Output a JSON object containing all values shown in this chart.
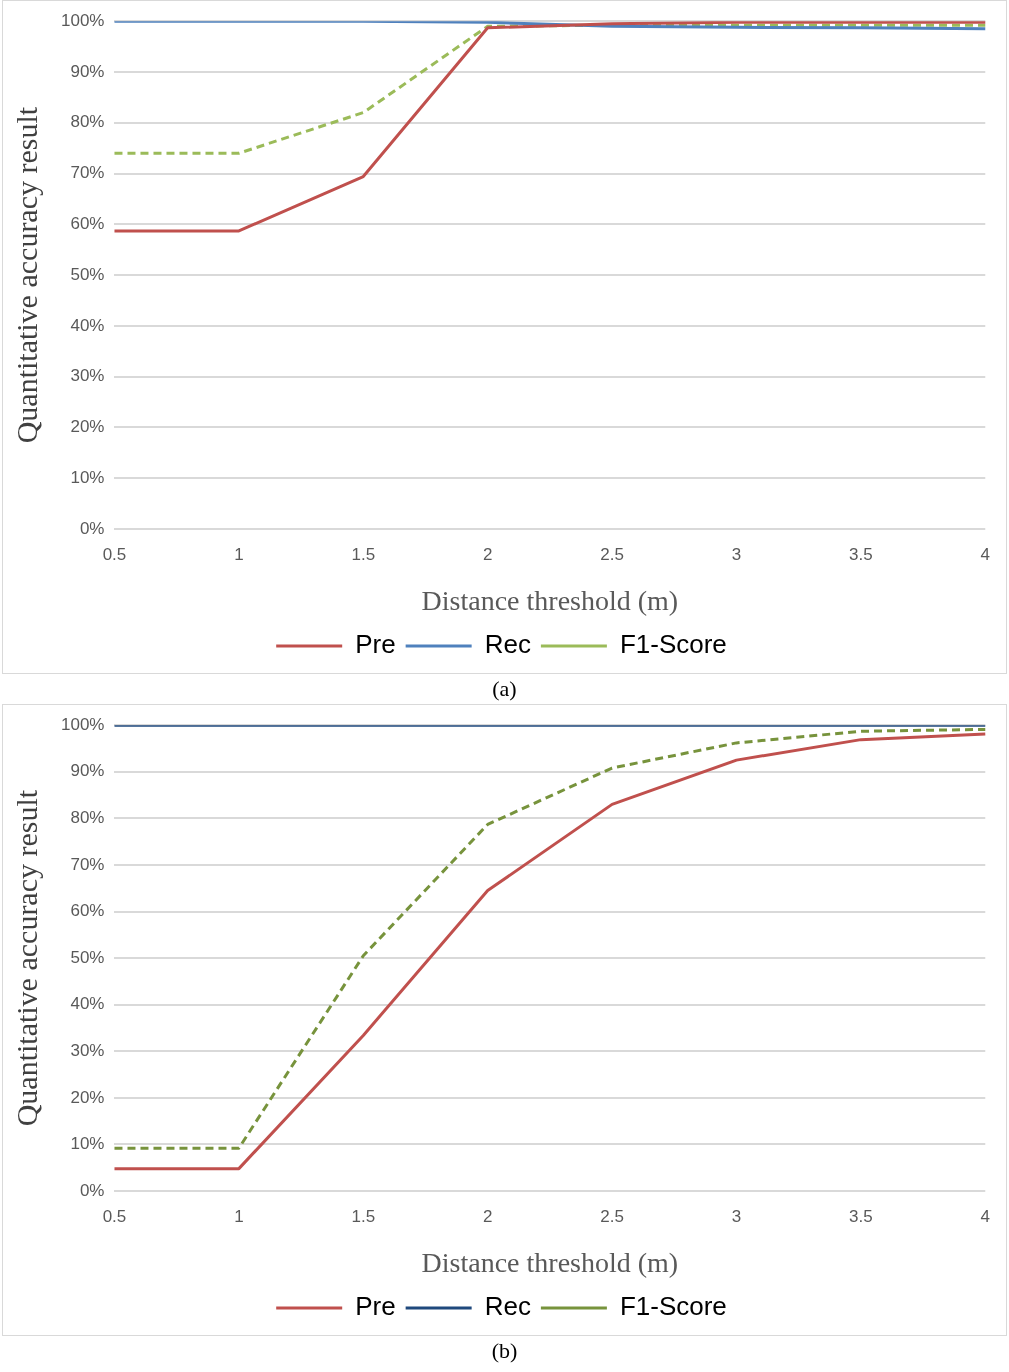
{
  "chart_data": [
    {
      "type": "line",
      "xlabel": "Distance threshold (m)",
      "ylabel": "Quantitative accuracy result",
      "categories": [
        "0.5",
        "1",
        "1.5",
        "2",
        "2.5",
        "3",
        "3.5",
        "4"
      ],
      "series": [
        {
          "name": "Pre",
          "color": "#c0504d",
          "values": [
            58.7,
            58.7,
            69.4,
            98.7,
            99.5,
            99.8,
            99.8,
            99.8
          ],
          "line_style": "solid",
          "marker": "none"
        },
        {
          "name": "Rec",
          "color": "#4f81bd",
          "values": [
            100,
            100,
            100,
            99.8,
            99,
            98.8,
            98.7,
            98.5
          ],
          "line_style": "solid",
          "marker": "none"
        },
        {
          "name": "F1-Score",
          "color": "#9bbb59",
          "values": [
            74,
            74,
            82,
            99,
            99.2,
            99.2,
            99.2,
            99.2
          ],
          "line_style": "dashed",
          "marker": "none"
        }
      ],
      "ylim": [
        0,
        100
      ],
      "yticks": [
        {
          "value": 0,
          "label": "0%"
        },
        {
          "value": 10,
          "label": "10%"
        },
        {
          "value": 20,
          "label": "20%"
        },
        {
          "value": 30,
          "label": "30%"
        },
        {
          "value": 40,
          "label": "40%"
        },
        {
          "value": 50,
          "label": "50%"
        },
        {
          "value": 60,
          "label": "60%"
        },
        {
          "value": 70,
          "label": "70%"
        },
        {
          "value": 80,
          "label": "80%"
        },
        {
          "value": 90,
          "label": "90%"
        },
        {
          "value": 100,
          "label": "100%"
        }
      ],
      "grid": "y",
      "legend": "bottom",
      "annotations": [
        "(a)"
      ]
    },
    {
      "type": "line",
      "xlabel": "Distance threshold (m)",
      "ylabel": "Quantitative accuracy result",
      "categories": [
        "0.5",
        "1",
        "1.5",
        "2",
        "2.5",
        "3",
        "3.5",
        "4"
      ],
      "series": [
        {
          "name": "Pre",
          "color": "#c0504d",
          "values": [
            4.8,
            4.8,
            33.4,
            64.5,
            83,
            92.5,
            96.9,
            98.1
          ],
          "line_style": "solid",
          "marker": "none"
        },
        {
          "name": "Rec",
          "color": "#1f497d",
          "values": [
            100,
            100,
            100,
            100,
            100,
            100,
            100,
            100
          ],
          "line_style": "solid",
          "marker": "none"
        },
        {
          "name": "F1-Score",
          "color": "#77933c",
          "values": [
            9.2,
            9.2,
            50.5,
            78.7,
            90.8,
            96.2,
            98.7,
            99.1
          ],
          "line_style": "dashed",
          "marker": "none"
        }
      ],
      "ylim": [
        0,
        100
      ],
      "yticks": [
        {
          "value": 0,
          "label": "0%"
        },
        {
          "value": 10,
          "label": "10%"
        },
        {
          "value": 20,
          "label": "20%"
        },
        {
          "value": 30,
          "label": "30%"
        },
        {
          "value": 40,
          "label": "40%"
        },
        {
          "value": 50,
          "label": "50%"
        },
        {
          "value": 60,
          "label": "60%"
        },
        {
          "value": 70,
          "label": "70%"
        },
        {
          "value": 80,
          "label": "80%"
        },
        {
          "value": 90,
          "label": "90%"
        },
        {
          "value": 100,
          "label": "100%"
        }
      ],
      "grid": "y",
      "legend": "bottom",
      "annotations": [
        "(b)"
      ]
    }
  ]
}
